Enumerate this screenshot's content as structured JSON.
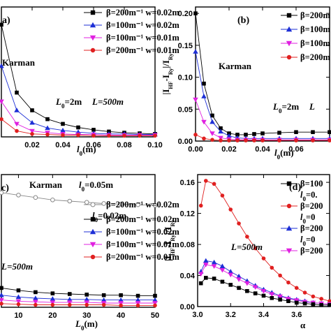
{
  "chart_data": [
    {
      "id": "a",
      "type": "line",
      "panel_label": "a)",
      "xlabel": "l0(m)",
      "ylabel": "",
      "xlim": [
        0.0,
        0.1
      ],
      "ylim": [
        0.0,
        0.22
      ],
      "xticks": [
        "0.02",
        "0.04",
        "0.06",
        "0.08",
        "0.10"
      ],
      "yticks": [],
      "annotations": [
        "Karman",
        "L0=2m",
        "L=500m"
      ],
      "x": [
        0.0,
        0.01,
        0.02,
        0.03,
        0.04,
        0.05,
        0.06,
        0.07,
        0.08,
        0.09,
        0.1
      ],
      "series": [
        {
          "name": "β=200m⁻¹  w=0.02m",
          "color": "#000000",
          "marker": "square",
          "values": [
            0.19,
            0.075,
            0.045,
            0.03,
            0.022,
            0.016,
            0.012,
            0.009,
            0.007,
            0.006,
            0.005
          ]
        },
        {
          "name": "β=100m⁻¹  w=0.02m",
          "color": "#1d2fd6",
          "marker": "triangle-up",
          "values": [
            0.12,
            0.045,
            0.024,
            0.015,
            0.011,
            0.008,
            0.006,
            0.005,
            0.005,
            0.004,
            0.004
          ]
        },
        {
          "name": "β=100m⁻¹  w=0.01m",
          "color": "#e020e0",
          "marker": "triangle-down",
          "values": [
            0.06,
            0.022,
            0.01,
            0.007,
            0.005,
            0.004,
            0.004,
            0.003,
            0.003,
            0.003,
            0.003
          ]
        },
        {
          "name": "β=200m⁻¹  w=0.01m",
          "color": "#e02020",
          "marker": "circle",
          "values": [
            0.03,
            0.01,
            0.005,
            0.004,
            0.003,
            0.003,
            0.002,
            0.002,
            0.002,
            0.002,
            0.002
          ]
        }
      ]
    },
    {
      "id": "b",
      "type": "line",
      "panel_label": "(b)",
      "xlabel": "l0(m)",
      "ylabel": "|IHF-IRy|/IRy",
      "xlim": [
        0.0,
        0.08
      ],
      "ylim": [
        0.0,
        0.21
      ],
      "xticks": [
        "0.00",
        "0.02",
        "0.04",
        "0.06"
      ],
      "yticks": [
        "0.00",
        "0.05",
        "0.10",
        "0.15",
        "0.20"
      ],
      "annotations": [
        "Karman",
        "L0=2m",
        "L"
      ],
      "legend_entries": [
        "β=200m",
        "β=100m",
        "β=100m",
        "β=200m"
      ],
      "x": [
        0.0,
        0.005,
        0.01,
        0.015,
        0.02,
        0.025,
        0.03,
        0.035,
        0.04,
        0.05,
        0.06,
        0.07,
        0.08
      ],
      "series": [
        {
          "color": "#000000",
          "marker": "square",
          "values": [
            0.2,
            0.09,
            0.04,
            0.02,
            0.012,
            0.01,
            0.01,
            0.011,
            0.012,
            0.013,
            0.014,
            0.014,
            0.014
          ]
        },
        {
          "color": "#1d2fd6",
          "marker": "triangle-up",
          "values": [
            0.14,
            0.07,
            0.03,
            0.015,
            0.008,
            0.005,
            0.004,
            0.004,
            0.004,
            0.004,
            0.004,
            0.004,
            0.004
          ]
        },
        {
          "color": "#e020e0",
          "marker": "triangle-down",
          "values": [
            0.065,
            0.03,
            0.012,
            0.005,
            0.003,
            0.002,
            0.002,
            0.002,
            0.002,
            0.002,
            0.002,
            0.002,
            0.002
          ]
        },
        {
          "color": "#e02020",
          "marker": "circle",
          "values": [
            0.01,
            0.004,
            0.002,
            0.001,
            0.001,
            0.001,
            0.001,
            0.001,
            0.001,
            0.001,
            0.001,
            0.001,
            0.001
          ]
        }
      ]
    },
    {
      "id": "c",
      "type": "line",
      "panel_label": "c)",
      "xlabel": "L0(m)",
      "ylabel": "",
      "xlim": [
        5,
        50
      ],
      "ylim": [
        0.0,
        0.22
      ],
      "xticks": [
        "10",
        "20",
        "30",
        "40",
        "50"
      ],
      "yticks": [],
      "annotations": [
        "Karman",
        "l0=0.05m",
        "l0=0.02m",
        "L=500m"
      ],
      "x": [
        5,
        10,
        15,
        20,
        25,
        30,
        35,
        40,
        45,
        50
      ],
      "series": [
        {
          "name": "β=200m⁻¹  w=0.02m",
          "color": "#888888",
          "marker": "circle-open",
          "group": "l0=0.05m",
          "values": [
            0.19,
            0.186,
            0.182,
            0.178,
            0.176,
            0.174,
            0.172,
            0.171,
            0.17,
            0.169
          ]
        },
        {
          "name": "β=200m⁻¹  w=0.02m",
          "color": "#000000",
          "marker": "square",
          "group": "l0=0.02m",
          "values": [
            0.032,
            0.028,
            0.025,
            0.023,
            0.022,
            0.021,
            0.02,
            0.02,
            0.019,
            0.019
          ]
        },
        {
          "name": "β=100m⁻¹  w=0.02m",
          "color": "#1d2fd6",
          "marker": "triangle-up",
          "group": "l0=0.02m",
          "values": [
            0.02,
            0.017,
            0.015,
            0.014,
            0.013,
            0.013,
            0.012,
            0.012,
            0.012,
            0.012
          ]
        },
        {
          "name": "β=100m⁻¹  w=0.01m",
          "color": "#e020e0",
          "marker": "triangle-down",
          "group": "l0=0.02m",
          "values": [
            0.012,
            0.01,
            0.009,
            0.008,
            0.008,
            0.008,
            0.007,
            0.007,
            0.007,
            0.007
          ]
        },
        {
          "name": "β=200m⁻¹  w=0.01m",
          "color": "#e02020",
          "marker": "circle",
          "group": "l0=0.02m",
          "values": [
            0.006,
            0.005,
            0.004,
            0.004,
            0.004,
            0.004,
            0.004,
            0.003,
            0.003,
            0.003
          ]
        }
      ]
    },
    {
      "id": "d",
      "type": "line",
      "panel_label": "(d)",
      "xlabel": "α",
      "ylabel": "|IHF-IRy|/IRy",
      "xlim": [
        3.0,
        3.8
      ],
      "ylim": [
        0.0,
        0.17
      ],
      "xticks": [
        "3.0",
        "3.2",
        "3.4",
        "3.6"
      ],
      "yticks": [
        "0.00",
        "0.04",
        "0.08",
        "0.12",
        "0.16"
      ],
      "annotations": [
        "L=500m"
      ],
      "legend_entries": [
        "β=100",
        "l0=0.",
        "β=200",
        "l0=0",
        "β=200",
        "l0=0",
        "β=200"
      ],
      "x": [
        3.02,
        3.05,
        3.1,
        3.15,
        3.2,
        3.25,
        3.3,
        3.35,
        3.4,
        3.45,
        3.5,
        3.55,
        3.6,
        3.65,
        3.7,
        3.75,
        3.8
      ],
      "series": [
        {
          "color": "#e02020",
          "marker": "circle",
          "values": [
            0.13,
            0.162,
            0.158,
            0.143,
            0.125,
            0.107,
            0.09,
            0.075,
            0.062,
            0.05,
            0.04,
            0.031,
            0.024,
            0.018,
            0.013,
            0.01,
            0.007
          ]
        },
        {
          "color": "#1d2fd6",
          "marker": "triangle-up",
          "values": [
            0.045,
            0.059,
            0.057,
            0.052,
            0.045,
            0.039,
            0.033,
            0.027,
            0.022,
            0.018,
            0.014,
            0.011,
            0.009,
            0.007,
            0.005,
            0.004,
            0.003
          ]
        },
        {
          "color": "#e020e0",
          "marker": "triangle-down",
          "values": [
            0.042,
            0.054,
            0.052,
            0.047,
            0.041,
            0.035,
            0.03,
            0.025,
            0.02,
            0.016,
            0.013,
            0.01,
            0.008,
            0.006,
            0.005,
            0.004,
            0.003
          ]
        },
        {
          "color": "#000000",
          "marker": "square",
          "values": [
            0.03,
            0.037,
            0.036,
            0.032,
            0.028,
            0.024,
            0.02,
            0.017,
            0.014,
            0.011,
            0.009,
            0.007,
            0.005,
            0.004,
            0.003,
            0.002,
            0.002
          ]
        }
      ]
    }
  ]
}
